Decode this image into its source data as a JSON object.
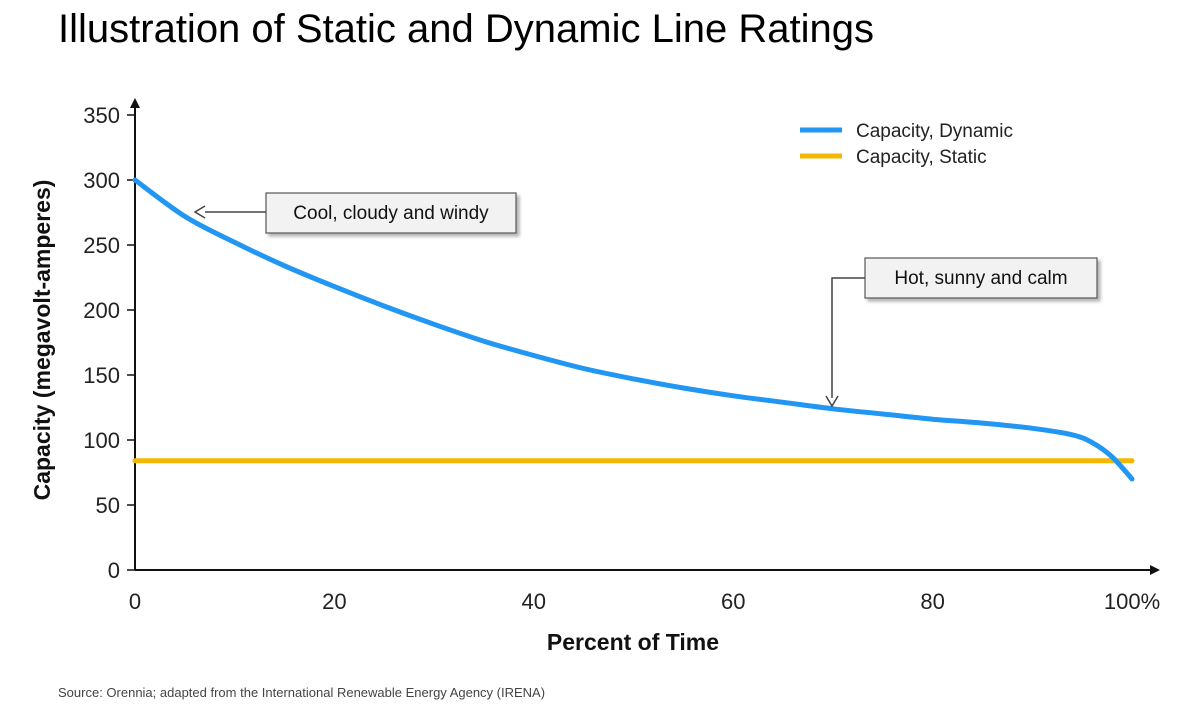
{
  "chart_data": {
    "type": "line",
    "title": "Illustration of Static and Dynamic Line Ratings",
    "xlabel": "Percent of Time",
    "ylabel": "Capacity (megavolt-amperes)",
    "xlim": [
      0,
      100
    ],
    "ylim": [
      0,
      350
    ],
    "x_ticks": [
      {
        "value": 0,
        "label": "0"
      },
      {
        "value": 20,
        "label": "20"
      },
      {
        "value": 40,
        "label": "40"
      },
      {
        "value": 60,
        "label": "60"
      },
      {
        "value": 80,
        "label": "80"
      },
      {
        "value": 100,
        "label": "100%"
      }
    ],
    "y_ticks": [
      {
        "value": 0,
        "label": "0"
      },
      {
        "value": 50,
        "label": "50"
      },
      {
        "value": 100,
        "label": "100"
      },
      {
        "value": 150,
        "label": "150"
      },
      {
        "value": 200,
        "label": "200"
      },
      {
        "value": 250,
        "label": "250"
      },
      {
        "value": 300,
        "label": "300"
      },
      {
        "value": 350,
        "label": "350"
      }
    ],
    "grid": false,
    "legend_position": "top-right",
    "series": [
      {
        "name": "Capacity, Dynamic",
        "color": "#2196F3",
        "x": [
          0,
          5,
          10,
          15,
          20,
          25,
          30,
          35,
          40,
          45,
          50,
          55,
          60,
          65,
          70,
          75,
          80,
          85,
          90,
          94,
          96,
          98,
          100
        ],
        "y": [
          300,
          272,
          252,
          234,
          218,
          203,
          189,
          176,
          165,
          155,
          147,
          140,
          134,
          129,
          124,
          120,
          116,
          113,
          109,
          104,
          98,
          87,
          70
        ]
      },
      {
        "name": "Capacity, Static",
        "color": "#F5B800",
        "x": [
          0,
          100
        ],
        "y": [
          84,
          84
        ]
      }
    ],
    "annotations": [
      {
        "text": "Cool, cloudy and windy",
        "point": [
          6,
          275
        ],
        "placement": "right"
      },
      {
        "text": "Hot, sunny and calm",
        "point": [
          70,
          124
        ],
        "placement": "above"
      }
    ]
  },
  "source": "Source: Orennia; adapted from the International Renewable Energy Agency (IRENA)"
}
